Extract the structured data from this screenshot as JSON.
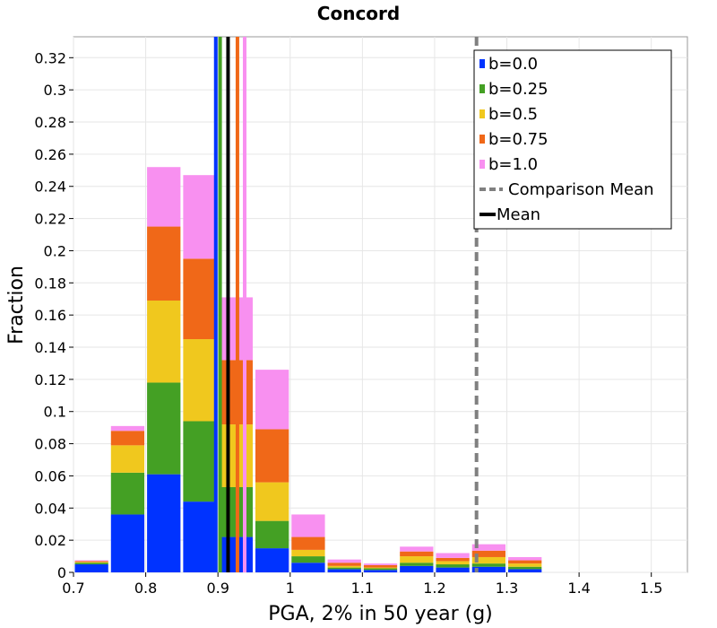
{
  "chart_data": {
    "type": "bar",
    "stacked": true,
    "title": "Concord",
    "xlabel": "PGA, 2% in 50 year (g)",
    "ylabel": "Fraction",
    "xlim": [
      0.7,
      1.55
    ],
    "ylim": [
      0,
      0.333
    ],
    "xticks": [
      0.7,
      0.8,
      0.9,
      1.0,
      1.1,
      1.2,
      1.3,
      1.4,
      1.5
    ],
    "xtick_labels": [
      "0.7",
      "0.8",
      "0.9",
      "1",
      "1.1",
      "1.2",
      "1.3",
      "1.4",
      "1.5"
    ],
    "yticks": [
      0,
      0.02,
      0.04,
      0.06,
      0.08,
      0.1,
      0.12,
      0.14,
      0.16,
      0.18,
      0.2,
      0.22,
      0.24,
      0.26,
      0.28,
      0.3,
      0.32
    ],
    "ytick_labels": [
      "0",
      "0.02",
      "0.04",
      "0.06",
      "0.08",
      "0.1",
      "0.12",
      "0.14",
      "0.16",
      "0.18",
      "0.2",
      "0.22",
      "0.24",
      "0.26",
      "0.28",
      "0.3",
      "0.32"
    ],
    "grid": true,
    "legend_position": "top-right",
    "bin_width": 0.05,
    "bin_starts": [
      0.7,
      0.75,
      0.8,
      0.85,
      0.9,
      0.95,
      1.0,
      1.05,
      1.1,
      1.15,
      1.2,
      1.25,
      1.3
    ],
    "series": [
      {
        "name": "b=0.0",
        "color": "#0033ff",
        "values": [
          0.005,
          0.036,
          0.061,
          0.044,
          0.022,
          0.015,
          0.006,
          0.002,
          0.0015,
          0.004,
          0.003,
          0.0035,
          0.002
        ]
      },
      {
        "name": "b=0.25",
        "color": "#44a024",
        "values": [
          0.001,
          0.026,
          0.057,
          0.05,
          0.031,
          0.017,
          0.004,
          0.001,
          0.001,
          0.002,
          0.002,
          0.002,
          0.0015
        ]
      },
      {
        "name": "b=0.5",
        "color": "#f0c81e",
        "values": [
          0.0005,
          0.017,
          0.051,
          0.051,
          0.039,
          0.024,
          0.004,
          0.001,
          0.0005,
          0.004,
          0.002,
          0.004,
          0.002
        ]
      },
      {
        "name": "b=0.75",
        "color": "#f06818",
        "values": [
          0.0005,
          0.009,
          0.046,
          0.05,
          0.04,
          0.033,
          0.008,
          0.002,
          0.0015,
          0.003,
          0.002,
          0.004,
          0.002
        ]
      },
      {
        "name": "b=1.0",
        "color": "#f890f0",
        "values": [
          0.0005,
          0.003,
          0.037,
          0.052,
          0.039,
          0.037,
          0.014,
          0.002,
          0.001,
          0.003,
          0.003,
          0.004,
          0.002
        ]
      }
    ],
    "mean_lines": [
      {
        "series": "b=0.0",
        "x": 0.897,
        "color": "#0033ff"
      },
      {
        "series": "b=0.25",
        "x": 0.903,
        "color": "#44a024"
      },
      {
        "series": "b=0.75",
        "x": 0.927,
        "color": "#f06818"
      },
      {
        "series": "b=1.0",
        "x": 0.937,
        "color": "#f890f0"
      },
      {
        "series": "Mean",
        "x": 0.914,
        "color": "#000000"
      }
    ],
    "comparison_mean": {
      "x": 1.258,
      "color": "#808080"
    },
    "legend": [
      {
        "label": "b=0.0",
        "kind": "swatch",
        "color": "#0033ff"
      },
      {
        "label": "b=0.25",
        "kind": "swatch",
        "color": "#44a024"
      },
      {
        "label": "b=0.5",
        "kind": "swatch",
        "color": "#f0c81e"
      },
      {
        "label": "b=0.75",
        "kind": "swatch",
        "color": "#f06818"
      },
      {
        "label": "b=1.0",
        "kind": "swatch",
        "color": "#f890f0"
      },
      {
        "label": "Comparison Mean",
        "kind": "dashed",
        "color": "#808080"
      },
      {
        "label": "Mean",
        "kind": "solid",
        "color": "#000000"
      }
    ]
  }
}
